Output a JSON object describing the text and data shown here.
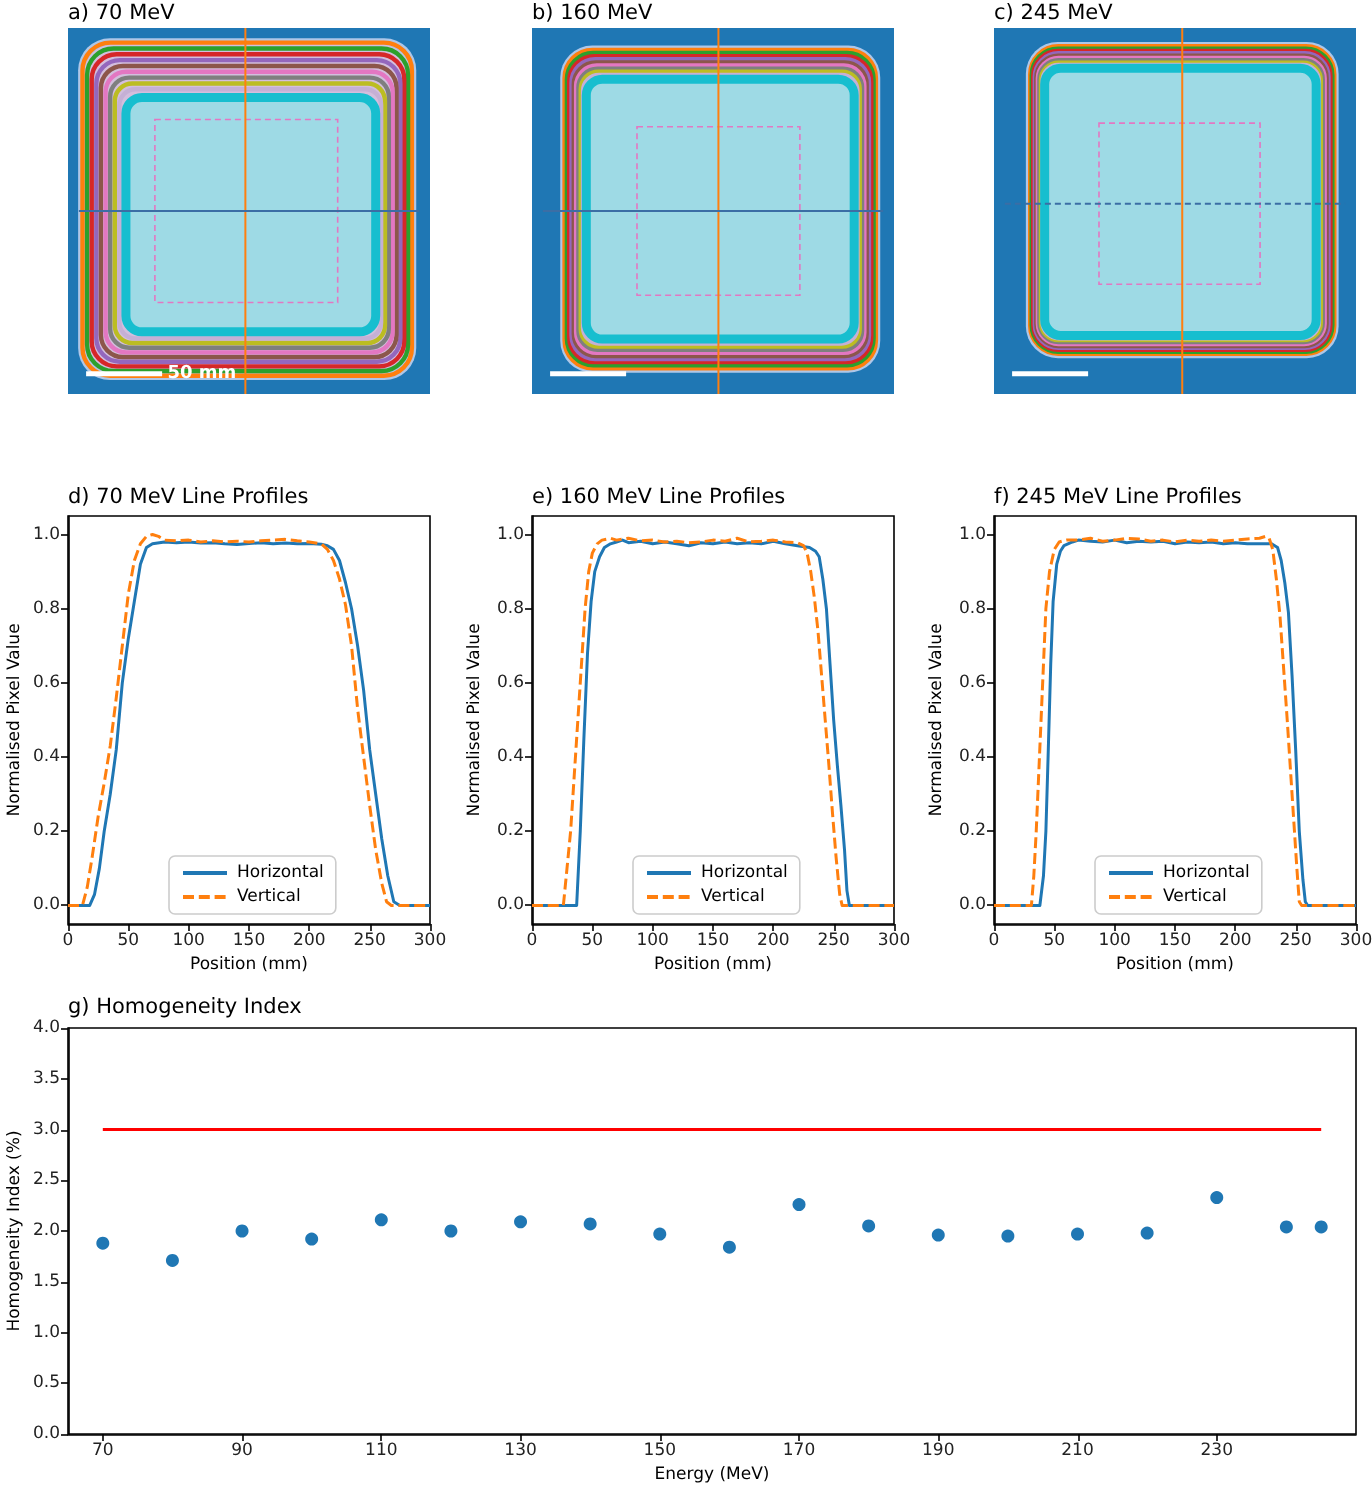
{
  "chart_data": [
    {
      "type": "other",
      "title": "a) 70 MeV",
      "annotations": [
        "50 mm"
      ]
    },
    {
      "type": "other",
      "title": "b) 160 MeV"
    },
    {
      "type": "other",
      "title": "c) 245 MeV"
    },
    {
      "type": "line",
      "title": "d) 70 MeV Line Profiles",
      "xlabel": "Position (mm)",
      "ylabel": "Normalised Pixel Value",
      "xlim": [
        0,
        300
      ],
      "xticks": [
        0,
        50,
        100,
        150,
        200,
        250,
        300
      ],
      "ylim": [
        -0.05,
        1.05
      ],
      "yticks": [
        {
          "value": 0,
          "label": "0.0"
        },
        0.2,
        0.4,
        0.6,
        0.8,
        {
          "value": 1,
          "label": "1.0"
        }
      ],
      "legend": "bottom",
      "series": [
        {
          "name": "Horizontal",
          "color": "#1f77b4",
          "line_style": "solid",
          "x": [
            0,
            18,
            22,
            26,
            30,
            35,
            40,
            45,
            50,
            55,
            60,
            65,
            70,
            80,
            90,
            100,
            110,
            120,
            130,
            140,
            150,
            160,
            170,
            180,
            190,
            200,
            210,
            215,
            220,
            225,
            230,
            235,
            240,
            245,
            250,
            255,
            260,
            265,
            270,
            275,
            300
          ],
          "values": [
            0,
            0,
            0.03,
            0.1,
            0.2,
            0.3,
            0.42,
            0.6,
            0.72,
            0.82,
            0.92,
            0.965,
            0.975,
            0.98,
            0.978,
            0.98,
            0.977,
            0.978,
            0.975,
            0.973,
            0.976,
            0.978,
            0.975,
            0.977,
            0.975,
            0.976,
            0.974,
            0.97,
            0.96,
            0.93,
            0.87,
            0.8,
            0.7,
            0.58,
            0.42,
            0.3,
            0.18,
            0.08,
            0.01,
            0,
            0
          ]
        },
        {
          "name": "Vertical",
          "color": "#ff7f0e",
          "line_style": "dashed",
          "x": [
            0,
            12,
            16,
            20,
            25,
            30,
            35,
            40,
            45,
            50,
            55,
            60,
            65,
            70,
            75,
            80,
            90,
            100,
            110,
            120,
            130,
            140,
            150,
            160,
            170,
            180,
            190,
            200,
            210,
            215,
            220,
            225,
            230,
            235,
            240,
            245,
            250,
            255,
            260,
            264,
            268,
            300
          ],
          "values": [
            0,
            0,
            0.05,
            0.13,
            0.24,
            0.33,
            0.43,
            0.56,
            0.7,
            0.84,
            0.93,
            0.975,
            0.995,
            1.0,
            0.995,
            0.985,
            0.983,
            0.985,
            0.98,
            0.983,
            0.98,
            0.982,
            0.98,
            0.983,
            0.985,
            0.987,
            0.983,
            0.98,
            0.975,
            0.96,
            0.93,
            0.88,
            0.81,
            0.7,
            0.53,
            0.4,
            0.27,
            0.15,
            0.06,
            0.01,
            0,
            0
          ]
        }
      ]
    },
    {
      "type": "line",
      "title": "e) 160 MeV Line Profiles",
      "xlabel": "Position (mm)",
      "ylabel": "Normalised Pixel Value",
      "xlim": [
        0,
        300
      ],
      "xticks": [
        0,
        50,
        100,
        150,
        200,
        250,
        300
      ],
      "ylim": [
        -0.05,
        1.05
      ],
      "yticks": [
        {
          "value": 0,
          "label": "0.0"
        },
        0.2,
        0.4,
        0.6,
        0.8,
        {
          "value": 1,
          "label": "1.0"
        }
      ],
      "legend": "bottom",
      "series": [
        {
          "name": "Horizontal",
          "color": "#1f77b4",
          "line_style": "solid",
          "x": [
            0,
            37,
            40,
            43,
            46,
            49,
            52,
            56,
            60,
            65,
            70,
            75,
            80,
            90,
            100,
            110,
            120,
            130,
            140,
            150,
            160,
            170,
            180,
            190,
            200,
            210,
            220,
            230,
            235,
            238,
            241,
            244,
            247,
            250,
            253,
            256,
            259,
            261,
            263,
            300
          ],
          "values": [
            0,
            0,
            0.2,
            0.45,
            0.68,
            0.82,
            0.9,
            0.94,
            0.965,
            0.975,
            0.98,
            0.985,
            0.978,
            0.982,
            0.975,
            0.98,
            0.975,
            0.97,
            0.978,
            0.975,
            0.98,
            0.975,
            0.978,
            0.975,
            0.982,
            0.975,
            0.97,
            0.965,
            0.955,
            0.94,
            0.88,
            0.8,
            0.65,
            0.5,
            0.38,
            0.27,
            0.15,
            0.04,
            0,
            0
          ]
        },
        {
          "name": "Vertical",
          "color": "#ff7f0e",
          "line_style": "dashed",
          "x": [
            0,
            26,
            29,
            32,
            35,
            38,
            41,
            44,
            47,
            50,
            54,
            58,
            65,
            70,
            80,
            90,
            100,
            110,
            120,
            130,
            140,
            150,
            160,
            170,
            180,
            190,
            200,
            210,
            220,
            225,
            228,
            231,
            234,
            237,
            240,
            243,
            246,
            249,
            252,
            255,
            257,
            300
          ],
          "values": [
            0,
            0,
            0.1,
            0.2,
            0.35,
            0.5,
            0.65,
            0.8,
            0.9,
            0.95,
            0.975,
            0.985,
            0.99,
            0.985,
            0.99,
            0.983,
            0.985,
            0.98,
            0.982,
            0.978,
            0.98,
            0.985,
            0.982,
            0.99,
            0.98,
            0.982,
            0.985,
            0.98,
            0.978,
            0.97,
            0.95,
            0.9,
            0.83,
            0.74,
            0.62,
            0.5,
            0.38,
            0.25,
            0.13,
            0.03,
            0,
            0
          ]
        }
      ]
    },
    {
      "type": "line",
      "title": "f) 245 MeV Line Profiles",
      "xlabel": "Position (mm)",
      "ylabel": "Normalised Pixel Value",
      "xlim": [
        0,
        300
      ],
      "xticks": [
        0,
        50,
        100,
        150,
        200,
        250,
        300
      ],
      "ylim": [
        -0.05,
        1.05
      ],
      "yticks": [
        {
          "value": 0,
          "label": "0.0"
        },
        0.2,
        0.4,
        0.6,
        0.8,
        {
          "value": 1,
          "label": "1.0"
        }
      ],
      "legend": "bottom",
      "series": [
        {
          "name": "Horizontal",
          "color": "#1f77b4",
          "line_style": "solid",
          "x": [
            0,
            38,
            41,
            43,
            45,
            47,
            49,
            52,
            55,
            58,
            65,
            70,
            80,
            90,
            100,
            110,
            120,
            130,
            140,
            150,
            160,
            170,
            180,
            190,
            200,
            210,
            220,
            230,
            235,
            238,
            241,
            244,
            247,
            250,
            253,
            256,
            258,
            260,
            300
          ],
          "values": [
            0,
            0,
            0.08,
            0.2,
            0.42,
            0.65,
            0.82,
            0.92,
            0.955,
            0.97,
            0.98,
            0.985,
            0.982,
            0.98,
            0.985,
            0.978,
            0.982,
            0.98,
            0.982,
            0.975,
            0.98,
            0.978,
            0.98,
            0.975,
            0.978,
            0.975,
            0.975,
            0.975,
            0.965,
            0.93,
            0.87,
            0.79,
            0.62,
            0.42,
            0.2,
            0.07,
            0.01,
            0,
            0
          ]
        },
        {
          "name": "Vertical",
          "color": "#ff7f0e",
          "line_style": "dashed",
          "x": [
            0,
            31,
            33,
            35,
            37,
            39,
            41,
            43,
            46,
            50,
            54,
            60,
            70,
            80,
            90,
            100,
            110,
            120,
            130,
            140,
            150,
            160,
            170,
            180,
            190,
            200,
            210,
            220,
            225,
            228,
            231,
            234,
            237,
            240,
            243,
            246,
            249,
            251,
            253,
            255,
            300
          ],
          "values": [
            0,
            0,
            0.08,
            0.2,
            0.35,
            0.5,
            0.65,
            0.8,
            0.9,
            0.96,
            0.98,
            0.985,
            0.985,
            0.99,
            0.982,
            0.985,
            0.99,
            0.988,
            0.982,
            0.985,
            0.98,
            0.985,
            0.982,
            0.985,
            0.982,
            0.985,
            0.988,
            0.99,
            0.995,
            0.99,
            0.96,
            0.88,
            0.78,
            0.64,
            0.5,
            0.35,
            0.2,
            0.1,
            0.01,
            0,
            0
          ]
        }
      ]
    },
    {
      "type": "scatter",
      "title": "g) Homogeneity Index",
      "xlabel": "Energy (MeV)",
      "ylabel": "Homogeneity Index (%)",
      "xlim": [
        65,
        250
      ],
      "xticks": [
        70,
        90,
        110,
        130,
        150,
        170,
        190,
        210,
        230
      ],
      "ylim": [
        0,
        4
      ],
      "yticks": [
        {
          "value": 0,
          "label": "0.0"
        },
        0.5,
        {
          "value": 1,
          "label": "1.0"
        },
        1.5,
        {
          "value": 2,
          "label": "2.0"
        },
        2.5,
        {
          "value": 3,
          "label": "3.0"
        },
        3.5,
        {
          "value": 4,
          "label": "4.0"
        }
      ],
      "marker": "circle",
      "x": [
        70,
        80,
        90,
        100,
        110,
        120,
        130,
        140,
        150,
        160,
        170,
        180,
        190,
        200,
        210,
        220,
        230,
        240,
        245
      ],
      "series": [
        {
          "color": "#1f77b4",
          "values": [
            1.88,
            1.71,
            2.0,
            1.92,
            2.11,
            2.0,
            2.09,
            2.07,
            1.97,
            1.84,
            2.26,
            2.05,
            1.96,
            1.95,
            1.97,
            1.98,
            2.33,
            2.04,
            2.04
          ]
        },
        {
          "type": "line",
          "color": "#ff0000",
          "marker": "none",
          "x": [
            70,
            245
          ],
          "values": [
            3,
            3
          ]
        }
      ]
    }
  ]
}
